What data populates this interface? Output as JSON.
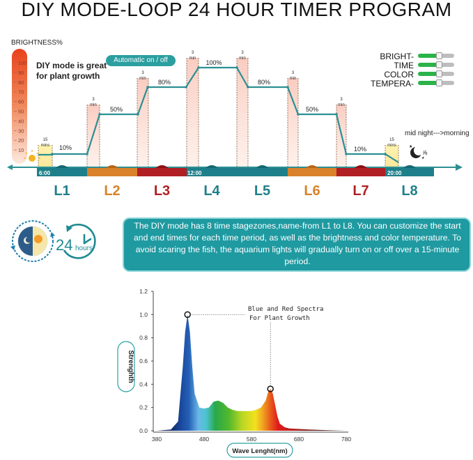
{
  "title": "DIY MODE-LOOP 24 HOUR TIMER PROGRAM",
  "brightness_axis": {
    "label": "BRIGHTNESS%",
    "ticks": [
      "100",
      "90",
      "80",
      "70",
      "60",
      "50",
      "40",
      "30",
      "20",
      "10"
    ]
  },
  "diy_note": {
    "line1": "DIY mode is great",
    "line2": "for plant growth"
  },
  "auto_badge": "Automatic on / off",
  "settings_legend": [
    "BRIGHT-",
    "TIME",
    "COLOR",
    "TEMPERA-"
  ],
  "stages": [
    {
      "name": "L1",
      "color": "#1e7f8a",
      "dark": "#136870"
    },
    {
      "name": "L2",
      "color": "#d9822b",
      "dark": "#b5661a"
    },
    {
      "name": "L3",
      "color": "#b01f24",
      "dark": "#8c1015"
    },
    {
      "name": "L4",
      "color": "#1e7f8a",
      "dark": "#136870"
    },
    {
      "name": "L5",
      "color": "#1e7f8a",
      "dark": "#136870"
    },
    {
      "name": "L6",
      "color": "#d9822b",
      "dark": "#b5661a"
    },
    {
      "name": "L7",
      "color": "#b01f24",
      "dark": "#8c1015"
    },
    {
      "name": "L8",
      "color": "#1e7f8a",
      "dark": "#136870"
    }
  ],
  "time_markers": [
    "6:00",
    "12:00",
    "20:00"
  ],
  "levels": [
    "10%",
    "50%",
    "80%",
    "100%",
    "80%",
    "50%",
    "10%",
    "0%"
  ],
  "ramp_labels": {
    "fifteen": [
      "15",
      "mins"
    ],
    "three": [
      "3",
      "min"
    ]
  },
  "midnight_label": "mid night--->morning",
  "description": "The DIY mode has 8 time stagezones,name-from L1 to L8. You can customize the start and end times for each time period, as well as the brightness and color temperature. To avoid scaring the fish, the aquarium lights will gradually turn on or off over a 15-minute period.",
  "clock_badge": {
    "number": "24",
    "unit": "hours"
  },
  "spectrum_chart": {
    "ylabel": "Strenghth",
    "xlabel": "Wave Lenght(nm)",
    "annotation": [
      "Blue and Red Spectra",
      "For Plant Growth"
    ],
    "y_ticks": [
      "0.0",
      "0.2",
      "0.4",
      "0.6",
      "0.8",
      "1.0",
      "1.2"
    ],
    "x_ticks": [
      "380",
      "480",
      "580",
      "680",
      "780"
    ]
  },
  "chart_data": {
    "type": "area",
    "x": [
      380,
      410,
      425,
      435,
      440,
      445,
      450,
      455,
      460,
      470,
      480,
      490,
      500,
      510,
      520,
      530,
      540,
      550,
      560,
      570,
      580,
      590,
      600,
      610,
      615,
      620,
      625,
      630,
      635,
      640,
      650,
      660,
      680,
      700,
      740,
      780
    ],
    "y": [
      0.0,
      0.01,
      0.08,
      0.55,
      0.85,
      1.0,
      0.85,
      0.55,
      0.32,
      0.2,
      0.19,
      0.2,
      0.25,
      0.26,
      0.24,
      0.2,
      0.18,
      0.17,
      0.17,
      0.17,
      0.17,
      0.18,
      0.2,
      0.26,
      0.33,
      0.36,
      0.32,
      0.22,
      0.12,
      0.06,
      0.03,
      0.02,
      0.015,
      0.01,
      0.005,
      0.0
    ],
    "peaks": [
      {
        "x": 445,
        "y": 1.0
      },
      {
        "x": 620,
        "y": 0.36
      }
    ],
    "xlabel": "Wave Lenght(nm)",
    "ylabel": "Strenghth",
    "xlim": [
      380,
      780
    ],
    "ylim": [
      0,
      1.2
    ],
    "grid": false
  }
}
